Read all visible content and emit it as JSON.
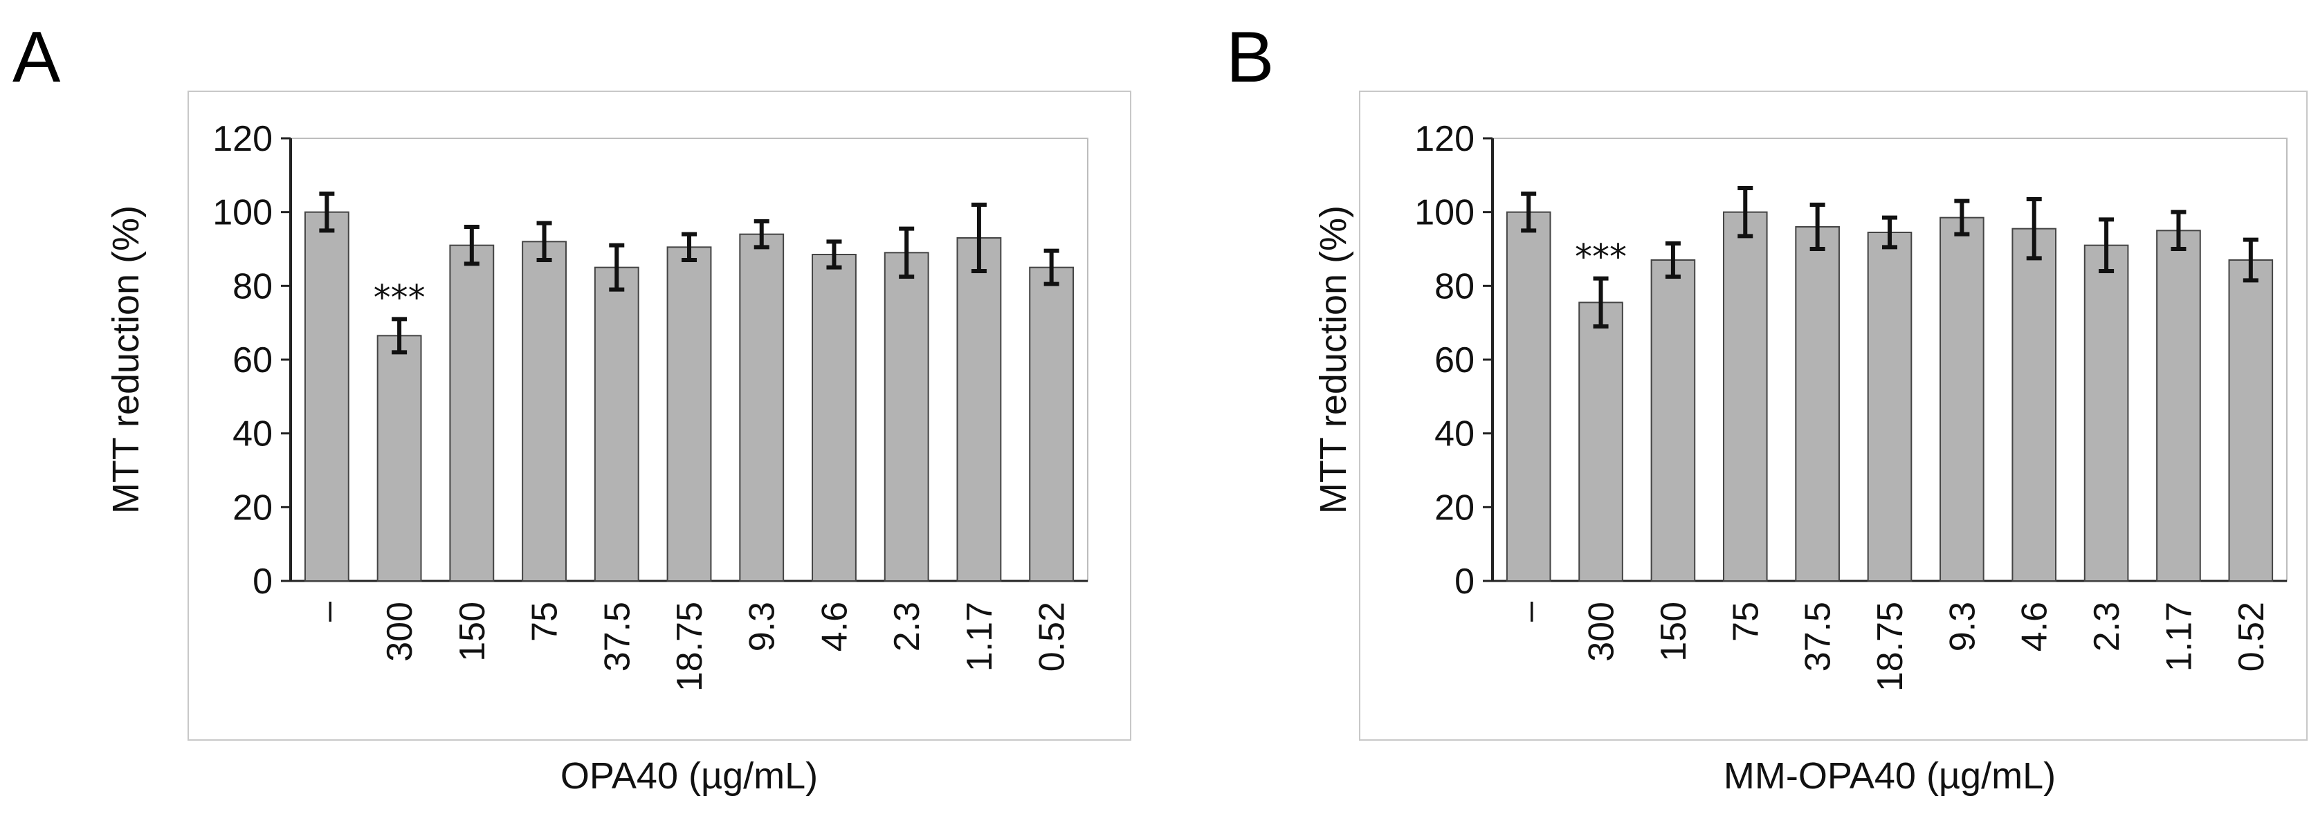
{
  "figure": {
    "colors": {
      "bar_fill": "#b3b3b3",
      "bar_stroke": "#444444",
      "axis": "#222222",
      "error": "#111111",
      "frame": "#c8c8c8"
    }
  },
  "chart_data": [
    {
      "panel": "A",
      "type": "bar",
      "title": "",
      "xlabel": "OPA40 (µg/mL)",
      "ylabel": "MTT reduction (%)",
      "ylim": [
        0,
        120
      ],
      "yticks": [
        "0",
        "20",
        "40",
        "60",
        "80",
        "100",
        "120"
      ],
      "categories": [
        "–",
        "300",
        "150",
        "75",
        "37.5",
        "18.75",
        "9.3",
        "4.6",
        "2.3",
        "1.17",
        "0.52"
      ],
      "values": [
        100,
        66.5,
        91,
        92,
        85,
        90.5,
        94,
        88.5,
        89,
        93,
        85
      ],
      "errors": [
        5,
        4.5,
        5,
        5,
        6,
        3.5,
        3.5,
        3.5,
        6.5,
        9,
        4.5
      ],
      "annotations": [
        {
          "category": "300",
          "text": "***"
        }
      ]
    },
    {
      "panel": "B",
      "type": "bar",
      "title": "",
      "xlabel": "MM-OPA40 (µg/mL)",
      "ylabel": "MTT reduction (%)",
      "ylim": [
        0,
        120
      ],
      "yticks": [
        "0",
        "20",
        "40",
        "60",
        "80",
        "100",
        "120"
      ],
      "categories": [
        "–",
        "300",
        "150",
        "75",
        "37.5",
        "18.75",
        "9.3",
        "4.6",
        "2.3",
        "1.17",
        "0.52"
      ],
      "values": [
        100,
        75.5,
        87,
        100,
        96,
        94.5,
        98.5,
        95.5,
        91,
        95,
        87
      ],
      "errors": [
        5,
        6.5,
        4.5,
        6.5,
        6,
        4,
        4.5,
        8,
        7,
        5,
        5.5
      ],
      "annotations": [
        {
          "category": "300",
          "text": "***"
        }
      ]
    }
  ]
}
